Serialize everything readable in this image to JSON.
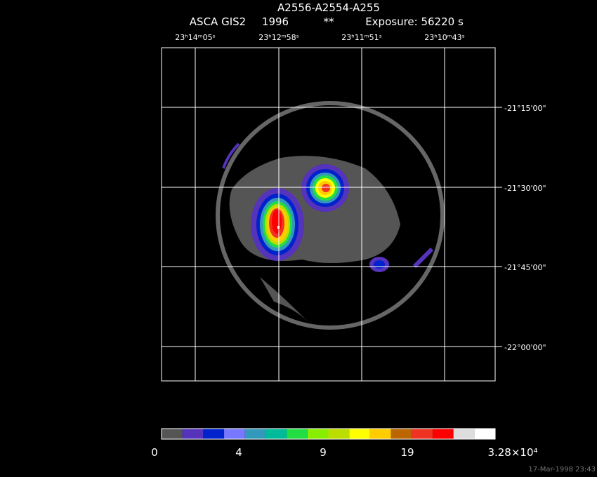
{
  "header": {
    "title": "A2556-A2554-A255",
    "instrument": "ASCA GIS2",
    "year": "1996",
    "flag": "**",
    "exposure": "Exposure: 56220 s"
  },
  "ra_labels": [
    "23ʰ14ᵐ05ˢ",
    "23ʰ12ᵐ58ˢ",
    "23ʰ11ᵐ51ˢ",
    "23ʰ10ᵐ43ˢ"
  ],
  "dec_labels": [
    "-21°15'00\"",
    "-21°30'00\"",
    "-21°45'00\"",
    "-22°00'00\""
  ],
  "colorbar": {
    "colors": [
      "#555555",
      "#5533bb",
      "#0022cc",
      "#7777ff",
      "#3399bb",
      "#00bb99",
      "#22dd44",
      "#88ee00",
      "#bbdd00",
      "#ffff00",
      "#ffcc00",
      "#bb6600",
      "#ee3322",
      "#ff0000",
      "#dddddd",
      "#ffffff"
    ],
    "labels": [
      "0",
      "4",
      "9",
      "19",
      "3.28×10⁴"
    ]
  },
  "timestamp": "17-Mar-1998 23:43"
}
